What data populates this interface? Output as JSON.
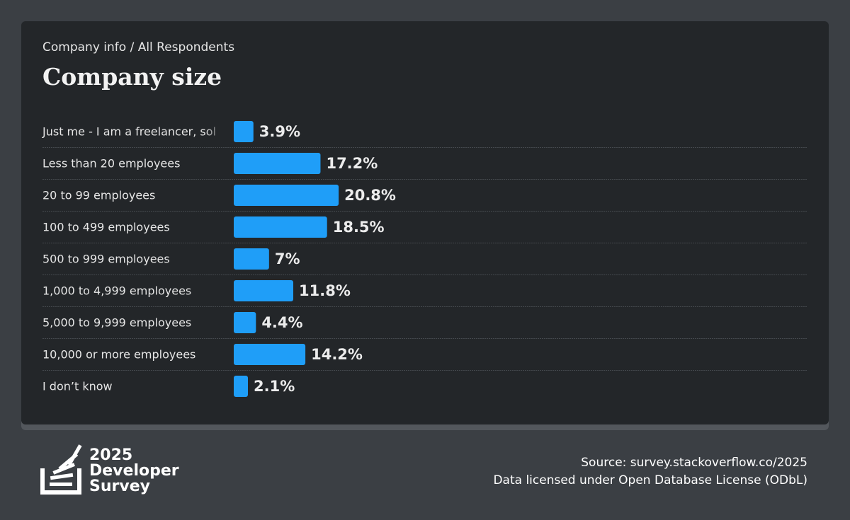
{
  "chart_data": {
    "type": "bar",
    "orientation": "horizontal",
    "subtitle": "Company info / All Respondents",
    "title": "Company size",
    "categories": [
      "Just me - I am a freelancer, sol",
      "Less than 20 employees",
      "20 to 99 employees",
      "100 to 499 employees",
      "500 to 999 employees",
      "1,000 to 4,999 employees",
      "5,000 to 9,999 employees",
      "10,000 or more employees",
      "I don’t know"
    ],
    "values": [
      3.9,
      17.2,
      20.8,
      18.5,
      7,
      11.8,
      4.4,
      14.2,
      2.1
    ],
    "value_labels": [
      "3.9%",
      "17.2%",
      "20.8%",
      "18.5%",
      "7%",
      "11.8%",
      "4.4%",
      "14.2%",
      "2.1%"
    ],
    "color": "#1f9ef8",
    "logo_text": [
      "2025",
      "Developer",
      "Survey"
    ],
    "source": "Source: survey.stackoverflow.co/2025",
    "license": "Data licensed under Open Database License (ODbL)"
  }
}
